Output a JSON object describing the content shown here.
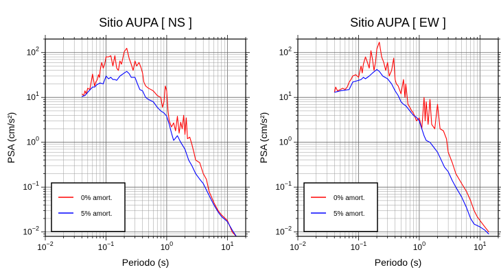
{
  "chart_data": [
    {
      "type": "line",
      "title": "Sitio AUPA [ NS ]",
      "xlabel": "Periodo (s)",
      "ylabel": "PSA (cm/s²)",
      "xscale": "log",
      "yscale": "log",
      "xlim": [
        0.01,
        20
      ],
      "ylim": [
        0.008,
        200
      ],
      "grid": true,
      "legend_position": "bottom-left",
      "x_ticks": [
        {
          "v": 0.01,
          "b": "10",
          "e": "−2"
        },
        {
          "v": 0.1,
          "b": "10",
          "e": "−1"
        },
        {
          "v": 1,
          "b": "10",
          "e": "0"
        },
        {
          "v": 10,
          "b": "10",
          "e": "1"
        }
      ],
      "y_ticks": [
        {
          "v": 0.01,
          "b": "10",
          "e": "−2"
        },
        {
          "v": 0.1,
          "b": "10",
          "e": "−1"
        },
        {
          "v": 1,
          "b": "10",
          "e": "0"
        },
        {
          "v": 10,
          "b": "10",
          "e": "1"
        },
        {
          "v": 100,
          "b": "10",
          "e": "2"
        }
      ],
      "series": [
        {
          "name": "0% amort.",
          "color": "#ff0000",
          "points": [
            [
              0.04,
              12
            ],
            [
              0.043,
              11
            ],
            [
              0.045,
              14
            ],
            [
              0.047,
              12
            ],
            [
              0.05,
              16
            ],
            [
              0.054,
              15
            ],
            [
              0.058,
              25
            ],
            [
              0.06,
              33
            ],
            [
              0.065,
              18
            ],
            [
              0.068,
              22
            ],
            [
              0.072,
              25
            ],
            [
              0.075,
              32
            ],
            [
              0.078,
              28
            ],
            [
              0.08,
              40
            ],
            [
              0.085,
              60
            ],
            [
              0.09,
              45
            ],
            [
              0.095,
              55
            ],
            [
              0.1,
              80
            ],
            [
              0.11,
              80
            ],
            [
              0.12,
              85
            ],
            [
              0.125,
              65
            ],
            [
              0.13,
              50
            ],
            [
              0.14,
              85
            ],
            [
              0.15,
              45
            ],
            [
              0.16,
              40
            ],
            [
              0.17,
              65
            ],
            [
              0.18,
              55
            ],
            [
              0.2,
              105
            ],
            [
              0.22,
              125
            ],
            [
              0.24,
              75
            ],
            [
              0.26,
              55
            ],
            [
              0.28,
              40
            ],
            [
              0.3,
              65
            ],
            [
              0.32,
              50
            ],
            [
              0.35,
              60
            ],
            [
              0.38,
              45
            ],
            [
              0.4,
              35
            ],
            [
              0.42,
              22
            ],
            [
              0.45,
              18
            ],
            [
              0.5,
              16
            ],
            [
              0.55,
              15
            ],
            [
              0.6,
              14
            ],
            [
              0.7,
              11
            ],
            [
              0.8,
              10
            ],
            [
              0.85,
              6
            ],
            [
              0.9,
              8
            ],
            [
              0.95,
              18
            ],
            [
              1,
              14
            ],
            [
              1.05,
              5
            ],
            [
              1.1,
              3
            ],
            [
              1.2,
              2.2
            ],
            [
              1.3,
              2.7
            ],
            [
              1.4,
              1.8
            ],
            [
              1.5,
              3.8
            ],
            [
              1.6,
              1.6
            ],
            [
              1.7,
              2.8
            ],
            [
              1.8,
              2
            ],
            [
              1.9,
              4
            ],
            [
              2,
              1.5
            ],
            [
              2.1,
              3.5
            ],
            [
              2.2,
              1.2
            ],
            [
              2.4,
              1.3
            ],
            [
              2.6,
              0.9
            ],
            [
              2.8,
              0.6
            ],
            [
              3,
              0.4
            ],
            [
              3.5,
              0.35
            ],
            [
              4,
              0.2
            ],
            [
              4.5,
              0.15
            ],
            [
              5,
              0.08
            ],
            [
              6,
              0.045
            ],
            [
              7,
              0.03
            ],
            [
              8,
              0.024
            ],
            [
              10,
              0.018
            ],
            [
              12,
              0.01
            ],
            [
              14,
              0.008
            ]
          ]
        },
        {
          "name": "5% amort.",
          "color": "#0000ff",
          "points": [
            [
              0.04,
              10.5
            ],
            [
              0.045,
              11
            ],
            [
              0.05,
              13
            ],
            [
              0.055,
              15
            ],
            [
              0.06,
              17
            ],
            [
              0.065,
              17
            ],
            [
              0.07,
              19
            ],
            [
              0.08,
              21
            ],
            [
              0.09,
              20
            ],
            [
              0.1,
              30
            ],
            [
              0.11,
              26
            ],
            [
              0.12,
              28
            ],
            [
              0.13,
              25
            ],
            [
              0.14,
              25
            ],
            [
              0.15,
              24
            ],
            [
              0.17,
              30
            ],
            [
              0.2,
              35
            ],
            [
              0.22,
              38
            ],
            [
              0.24,
              34
            ],
            [
              0.26,
              28
            ],
            [
              0.3,
              28
            ],
            [
              0.33,
              20
            ],
            [
              0.36,
              15
            ],
            [
              0.4,
              14
            ],
            [
              0.45,
              10
            ],
            [
              0.5,
              9
            ],
            [
              0.6,
              8
            ],
            [
              0.7,
              6
            ],
            [
              0.8,
              5
            ],
            [
              0.9,
              4.5
            ],
            [
              1,
              3.8
            ],
            [
              1.1,
              2.5
            ],
            [
              1.2,
              1.6
            ],
            [
              1.3,
              1.1
            ],
            [
              1.5,
              1.4
            ],
            [
              1.7,
              1
            ],
            [
              2,
              0.7
            ],
            [
              2.3,
              0.4
            ],
            [
              2.6,
              0.3
            ],
            [
              3,
              0.2
            ],
            [
              3.5,
              0.15
            ],
            [
              4,
              0.12
            ],
            [
              5,
              0.065
            ],
            [
              6,
              0.04
            ],
            [
              7,
              0.028
            ],
            [
              8,
              0.022
            ],
            [
              10,
              0.017
            ],
            [
              12,
              0.011
            ],
            [
              14,
              0.008
            ]
          ]
        }
      ]
    },
    {
      "type": "line",
      "title": "Sitio AUPA [ EW ]",
      "xlabel": "Periodo (s)",
      "ylabel": "PSA (cm/s²)",
      "xscale": "log",
      "yscale": "log",
      "xlim": [
        0.01,
        20
      ],
      "ylim": [
        0.008,
        200
      ],
      "grid": true,
      "legend_position": "bottom-left",
      "x_ticks": [
        {
          "v": 0.01,
          "b": "10",
          "e": "−2"
        },
        {
          "v": 0.1,
          "b": "10",
          "e": "−1"
        },
        {
          "v": 1,
          "b": "10",
          "e": "0"
        },
        {
          "v": 10,
          "b": "10",
          "e": "1"
        }
      ],
      "y_ticks": [
        {
          "v": 0.01,
          "b": "10",
          "e": "−2"
        },
        {
          "v": 0.1,
          "b": "10",
          "e": "−1"
        },
        {
          "v": 1,
          "b": "10",
          "e": "0"
        },
        {
          "v": 10,
          "b": "10",
          "e": "1"
        },
        {
          "v": 100,
          "b": "10",
          "e": "2"
        }
      ],
      "series": [
        {
          "name": "0% amort.",
          "color": "#ff0000",
          "points": [
            [
              0.04,
              13
            ],
            [
              0.042,
              17
            ],
            [
              0.045,
              14
            ],
            [
              0.05,
              15
            ],
            [
              0.055,
              16
            ],
            [
              0.06,
              15
            ],
            [
              0.065,
              17
            ],
            [
              0.07,
              22
            ],
            [
              0.075,
              25
            ],
            [
              0.08,
              30
            ],
            [
              0.09,
              32
            ],
            [
              0.1,
              28
            ],
            [
              0.11,
              50
            ],
            [
              0.115,
              35
            ],
            [
              0.12,
              55
            ],
            [
              0.13,
              80
            ],
            [
              0.14,
              60
            ],
            [
              0.15,
              45
            ],
            [
              0.16,
              110
            ],
            [
              0.17,
              70
            ],
            [
              0.18,
              40
            ],
            [
              0.19,
              60
            ],
            [
              0.2,
              120
            ],
            [
              0.22,
              170
            ],
            [
              0.24,
              80
            ],
            [
              0.26,
              60
            ],
            [
              0.28,
              40
            ],
            [
              0.3,
              60
            ],
            [
              0.32,
              30
            ],
            [
              0.35,
              40
            ],
            [
              0.38,
              75
            ],
            [
              0.4,
              25
            ],
            [
              0.42,
              20
            ],
            [
              0.45,
              18
            ],
            [
              0.5,
              12
            ],
            [
              0.55,
              25
            ],
            [
              0.58,
              10
            ],
            [
              0.6,
              20
            ],
            [
              0.65,
              7
            ],
            [
              0.7,
              6
            ],
            [
              0.75,
              5
            ],
            [
              0.8,
              4.5
            ],
            [
              0.9,
              3
            ],
            [
              1,
              3.5
            ],
            [
              1.1,
              2
            ],
            [
              1.2,
              10
            ],
            [
              1.25,
              3
            ],
            [
              1.3,
              8
            ],
            [
              1.4,
              2.5
            ],
            [
              1.5,
              9
            ],
            [
              1.6,
              2.5
            ],
            [
              1.8,
              2
            ],
            [
              2,
              7
            ],
            [
              2.2,
              2
            ],
            [
              2.5,
              1.8
            ],
            [
              2.8,
              1.2
            ],
            [
              3,
              0.6
            ],
            [
              3.5,
              0.35
            ],
            [
              4,
              0.2
            ],
            [
              5,
              0.12
            ],
            [
              6,
              0.08
            ],
            [
              7,
              0.05
            ],
            [
              8,
              0.03
            ],
            [
              9,
              0.022
            ],
            [
              10,
              0.018
            ],
            [
              12,
              0.013
            ],
            [
              14,
              0.01
            ]
          ]
        },
        {
          "name": "5% amort.",
          "color": "#0000ff",
          "points": [
            [
              0.04,
              13
            ],
            [
              0.045,
              13.5
            ],
            [
              0.05,
              14
            ],
            [
              0.06,
              14.5
            ],
            [
              0.07,
              15
            ],
            [
              0.08,
              22
            ],
            [
              0.09,
              23
            ],
            [
              0.1,
              24
            ],
            [
              0.11,
              25
            ],
            [
              0.12,
              28
            ],
            [
              0.13,
              26
            ],
            [
              0.15,
              30
            ],
            [
              0.17,
              35
            ],
            [
              0.2,
              42
            ],
            [
              0.22,
              38
            ],
            [
              0.25,
              30
            ],
            [
              0.3,
              26
            ],
            [
              0.35,
              20
            ],
            [
              0.4,
              14
            ],
            [
              0.45,
              11
            ],
            [
              0.5,
              8
            ],
            [
              0.55,
              7
            ],
            [
              0.6,
              6.5
            ],
            [
              0.7,
              5
            ],
            [
              0.8,
              4
            ],
            [
              0.9,
              3.6
            ],
            [
              1,
              3
            ],
            [
              1.1,
              2
            ],
            [
              1.2,
              1.4
            ],
            [
              1.3,
              1.1
            ],
            [
              1.5,
              1
            ],
            [
              1.7,
              0.8
            ],
            [
              2,
              0.6
            ],
            [
              2.3,
              0.4
            ],
            [
              2.6,
              0.28
            ],
            [
              3,
              0.22
            ],
            [
              3.5,
              0.14
            ],
            [
              4,
              0.1
            ],
            [
              5,
              0.06
            ],
            [
              6,
              0.035
            ],
            [
              7,
              0.02
            ],
            [
              8,
              0.015
            ],
            [
              10,
              0.013
            ],
            [
              12,
              0.011
            ],
            [
              14,
              0.009
            ]
          ]
        }
      ]
    }
  ]
}
